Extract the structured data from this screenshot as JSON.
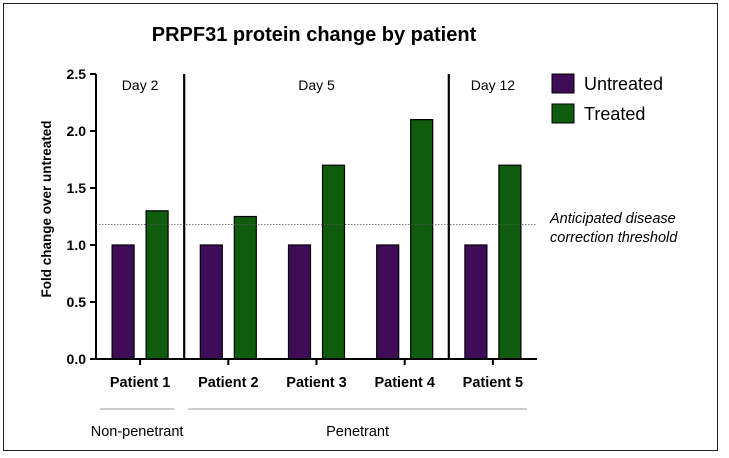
{
  "chart_data": {
    "type": "bar",
    "title": "PRPF31 protein change by patient",
    "xlabel": "",
    "ylabel": "Fold change over untreated",
    "ylim": [
      0,
      2.5
    ],
    "yticks": [
      "0.0",
      "0.5",
      "1.0",
      "1.5",
      "2.0",
      "2.5"
    ],
    "categories": [
      "Patient 1",
      "Patient 2",
      "Patient 3",
      "Patient 4",
      "Patient 5"
    ],
    "series": [
      {
        "name": "Untreated",
        "color": "#3f0d57",
        "values": [
          1.0,
          1.0,
          1.0,
          1.0,
          1.0
        ]
      },
      {
        "name": "Treated",
        "color": "#0f5c0f",
        "values": [
          1.3,
          1.25,
          1.7,
          2.1,
          1.7
        ]
      }
    ],
    "legend": {
      "placement": "top-right"
    },
    "day_sections": [
      {
        "label": "Day 2",
        "categories": [
          "Patient 1"
        ]
      },
      {
        "label": "Day 5",
        "categories": [
          "Patient 2",
          "Patient 3",
          "Patient 4"
        ]
      },
      {
        "label": "Day 12",
        "categories": [
          "Patient 5"
        ]
      }
    ],
    "threshold": {
      "value": 1.18,
      "label_line1": "Anticipated disease",
      "label_line2": "correction threshold"
    },
    "groups": [
      {
        "label": "Non-penetrant",
        "categories": [
          "Patient 1"
        ]
      },
      {
        "label": "Penetrant",
        "categories": [
          "Patient 2",
          "Patient 3",
          "Patient 4",
          "Patient 5"
        ]
      }
    ],
    "grid": false
  }
}
